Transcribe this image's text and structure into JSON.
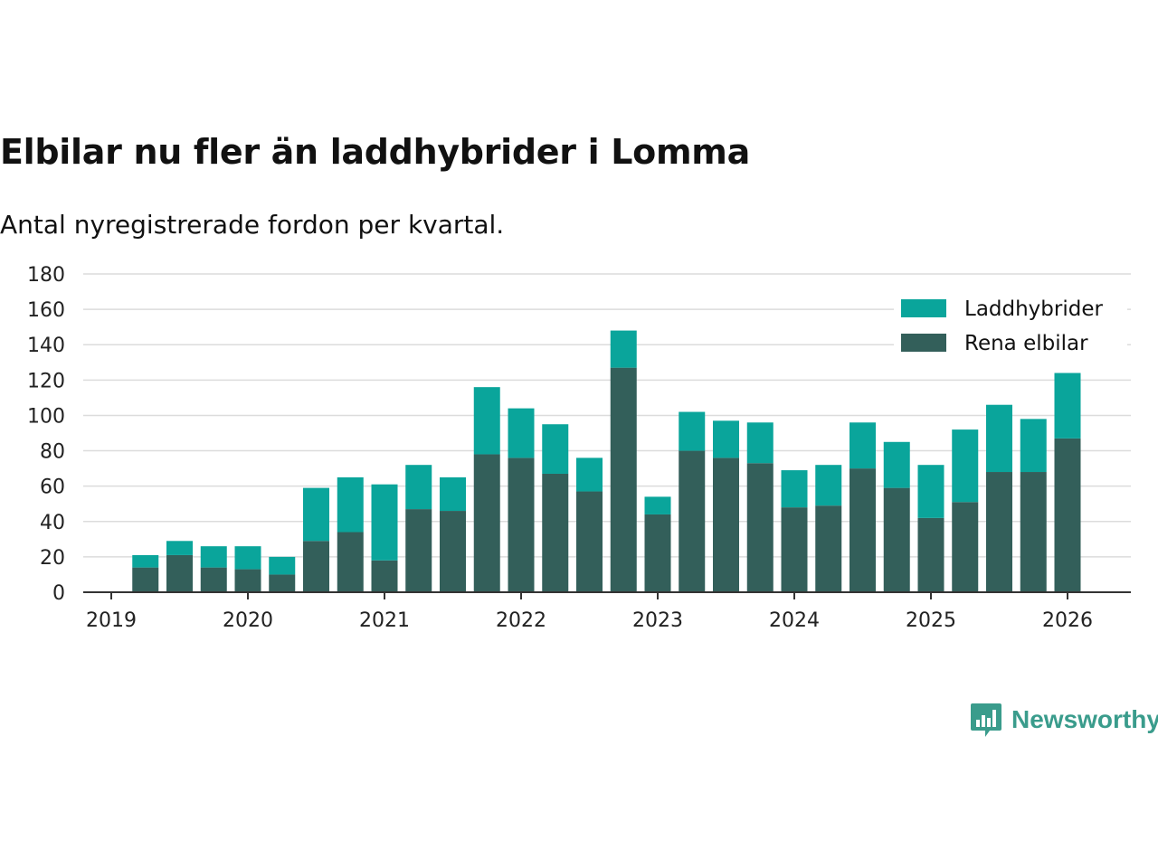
{
  "title": "Elbilar nu fler än laddhybrider i Lomma",
  "subtitle": "Antal nyregistrerade fordon per kvartal.",
  "brand": {
    "name": "Newsworthy",
    "color": "#3a9c8c",
    "icon": "newsworthy-logo-icon"
  },
  "chart_data": {
    "type": "bar",
    "stacked": true,
    "categories": [
      "2019-Q2",
      "2019-Q3",
      "2019-Q4",
      "2020-Q1",
      "2020-Q2",
      "2020-Q3",
      "2020-Q4",
      "2021-Q1",
      "2021-Q2",
      "2021-Q3",
      "2021-Q4",
      "2022-Q1",
      "2022-Q2",
      "2022-Q3",
      "2022-Q4",
      "2023-Q1",
      "2023-Q2",
      "2023-Q3",
      "2023-Q4",
      "2024-Q1",
      "2024-Q2",
      "2024-Q3",
      "2024-Q4",
      "2025-Q1",
      "2025-Q2",
      "2025-Q3",
      "2025-Q4",
      "2026-Q1"
    ],
    "series": [
      {
        "name": "Rena elbilar",
        "color": "#335f5a",
        "values": [
          14,
          21,
          14,
          13,
          10,
          29,
          34,
          18,
          47,
          46,
          78,
          76,
          67,
          57,
          127,
          44,
          80,
          76,
          73,
          48,
          49,
          70,
          59,
          42,
          51,
          68,
          68,
          87
        ]
      },
      {
        "name": "Laddhybrider",
        "color": "#0aa59b",
        "values": [
          7,
          8,
          12,
          13,
          10,
          30,
          31,
          43,
          25,
          19,
          38,
          28,
          28,
          19,
          21,
          10,
          22,
          21,
          23,
          21,
          23,
          26,
          26,
          30,
          41,
          38,
          30,
          37
        ]
      }
    ],
    "legend": [
      "Laddhybrider",
      "Rena elbilar"
    ],
    "legend_position": "top-right",
    "x_tick_labels": [
      "2019",
      "2020",
      "2021",
      "2022",
      "2023",
      "2024",
      "2025",
      "2026"
    ],
    "y_ticks": [
      0,
      20,
      40,
      60,
      80,
      100,
      120,
      140,
      160,
      180
    ],
    "ylim": [
      0,
      180
    ],
    "grid": true,
    "xlabel": "",
    "ylabel": ""
  }
}
